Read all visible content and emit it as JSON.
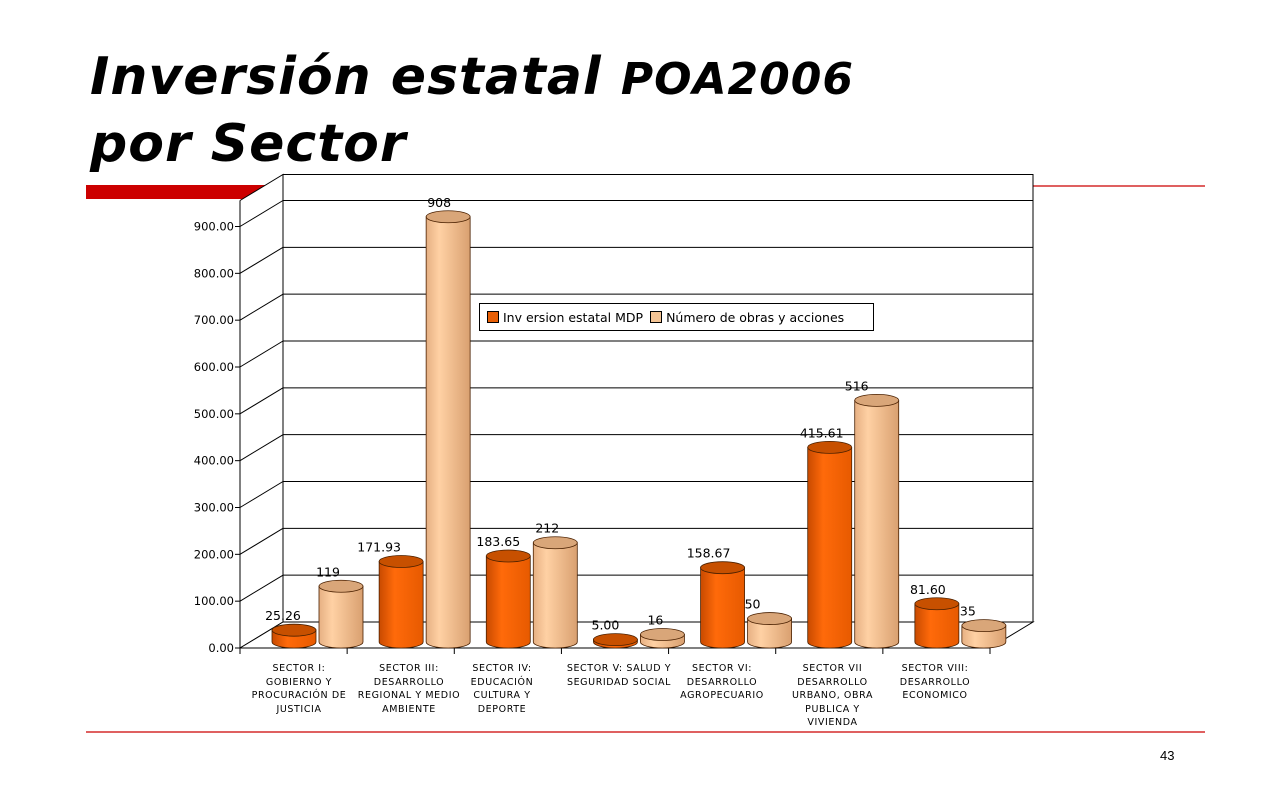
{
  "slide": {
    "title_line1": "Inversión estatal ",
    "title_line1b": "POA2006",
    "title_line2": "por Sector",
    "page_number": "43",
    "accent_color": "#cc0000"
  },
  "chart_data": {
    "type": "bar",
    "three_d": true,
    "categories": [
      "SECTOR I: GOBIERNO Y PROCURACIÓN DE JUSTICIA",
      "SECTOR III: DESARROLLO REGIONAL Y MEDIO AMBIENTE",
      "SECTOR IV: EDUCACIÓN CULTURA Y DEPORTE",
      "SECTOR V: SALUD Y SEGURIDAD SOCIAL",
      "SECTOR VI: DESARROLLO AGROPECUARIO",
      "SECTOR VII DESARROLLO URBANO, OBRA PUBLICA Y VIVIENDA",
      "SECTOR VIII: DESARROLLO ECONOMICO"
    ],
    "series": [
      {
        "name": "Inv ersion estatal MDP",
        "color": "#e85f05",
        "values": [
          25.26,
          171.93,
          183.65,
          5.0,
          158.67,
          415.61,
          81.6
        ],
        "labels": [
          "25.26",
          "171.93",
          "183.65",
          "5.00",
          "158.67",
          "415.61",
          "81.60"
        ]
      },
      {
        "name": "Número de obras y acciones",
        "color": "#f0bf8e",
        "values": [
          119,
          908,
          212,
          16,
          50,
          516,
          35
        ],
        "labels": [
          "119",
          "908",
          "212",
          "16",
          "50",
          "516",
          "35"
        ]
      }
    ],
    "ylim": [
      0,
      900
    ],
    "yticks": [
      "0.00",
      "100.00",
      "200.00",
      "300.00",
      "400.00",
      "500.00",
      "600.00",
      "700.00",
      "800.00",
      "900.00"
    ],
    "grid": true,
    "legend_position": "upper-center"
  }
}
